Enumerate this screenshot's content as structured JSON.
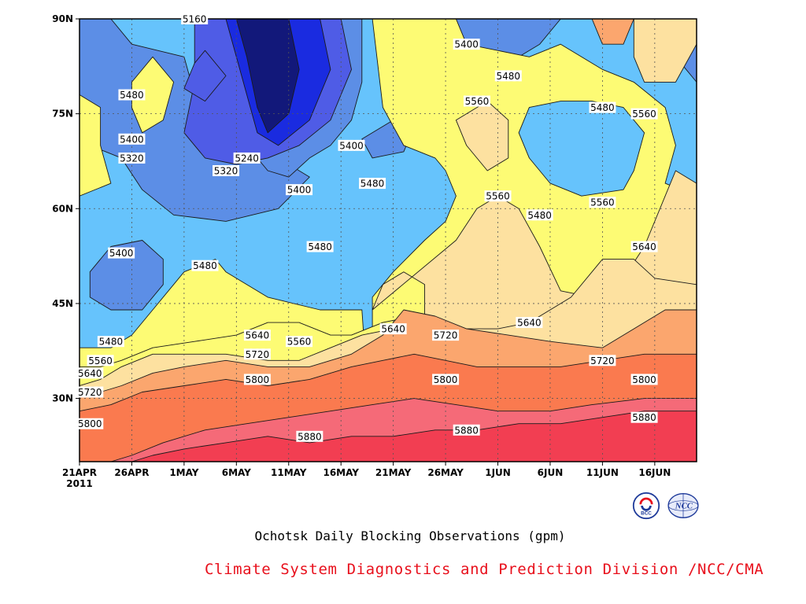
{
  "chart_data": {
    "type": "contour",
    "title": "Ochotsk Daily Blocking Observations (gpm)",
    "x_ticks": [
      "21APR",
      "26APR",
      "1MAY",
      "6MAY",
      "11MAY",
      "16MAY",
      "21MAY",
      "26MAY",
      "1JUN",
      "6JUN",
      "11JUN",
      "16JUN"
    ],
    "x_year": "2011",
    "y_ticks": [
      "90N",
      "75N",
      "60N",
      "45N",
      "30N"
    ],
    "xlim": [
      "2011-04-21",
      "2011-06-19"
    ],
    "ylim": [
      20,
      90
    ],
    "contour_interval": 80,
    "levels": [
      5160,
      5240,
      5320,
      5400,
      5480,
      5560,
      5640,
      5720,
      5800,
      5880
    ],
    "contour_labels": [
      {
        "text": "5160",
        "date": "2011-05-02",
        "lat": 90
      },
      {
        "text": "5400",
        "date": "2011-05-28",
        "lat": 86
      },
      {
        "text": "5480",
        "date": "2011-06-01",
        "lat": 81
      },
      {
        "text": "5480",
        "date": "2011-04-26",
        "lat": 78
      },
      {
        "text": "5560",
        "date": "2011-05-29",
        "lat": 77
      },
      {
        "text": "5480",
        "date": "2011-06-10",
        "lat": 76
      },
      {
        "text": "5560",
        "date": "2011-06-14",
        "lat": 75
      },
      {
        "text": "5400",
        "date": "2011-04-26",
        "lat": 71
      },
      {
        "text": "5320",
        "date": "2011-04-26",
        "lat": 68
      },
      {
        "text": "5240",
        "date": "2011-05-07",
        "lat": 68
      },
      {
        "text": "5400",
        "date": "2011-05-17",
        "lat": 70
      },
      {
        "text": "5320",
        "date": "2011-05-05",
        "lat": 66
      },
      {
        "text": "5480",
        "date": "2011-05-19",
        "lat": 64
      },
      {
        "text": "5400",
        "date": "2011-05-12",
        "lat": 63
      },
      {
        "text": "5560",
        "date": "2011-05-31",
        "lat": 62
      },
      {
        "text": "5560",
        "date": "2011-06-10",
        "lat": 61
      },
      {
        "text": "5480",
        "date": "2011-06-04",
        "lat": 59
      },
      {
        "text": "5640",
        "date": "2011-06-14",
        "lat": 54
      },
      {
        "text": "5400",
        "date": "2011-04-25",
        "lat": 53
      },
      {
        "text": "5480",
        "date": "2011-05-14",
        "lat": 54
      },
      {
        "text": "5480",
        "date": "2011-05-03",
        "lat": 51
      },
      {
        "text": "5640",
        "date": "2011-05-08",
        "lat": 40
      },
      {
        "text": "5640",
        "date": "2011-05-21",
        "lat": 41
      },
      {
        "text": "5720",
        "date": "2011-05-26",
        "lat": 40
      },
      {
        "text": "5640",
        "date": "2011-06-03",
        "lat": 42
      },
      {
        "text": "5480",
        "date": "2011-04-24",
        "lat": 39
      },
      {
        "text": "5560",
        "date": "2011-05-12",
        "lat": 39
      },
      {
        "text": "5720",
        "date": "2011-05-08",
        "lat": 37
      },
      {
        "text": "5720",
        "date": "2011-06-10",
        "lat": 36
      },
      {
        "text": "5560",
        "date": "2011-04-23",
        "lat": 36
      },
      {
        "text": "5640",
        "date": "2011-04-22",
        "lat": 34
      },
      {
        "text": "5800",
        "date": "2011-05-08",
        "lat": 33
      },
      {
        "text": "5800",
        "date": "2011-05-26",
        "lat": 33
      },
      {
        "text": "5800",
        "date": "2011-06-14",
        "lat": 33
      },
      {
        "text": "5720",
        "date": "2011-04-22",
        "lat": 31
      },
      {
        "text": "5880",
        "date": "2011-06-14",
        "lat": 27
      },
      {
        "text": "5800",
        "date": "2011-04-22",
        "lat": 26
      },
      {
        "text": "5880",
        "date": "2011-05-13",
        "lat": 24
      },
      {
        "text": "5880",
        "date": "2011-05-28",
        "lat": 25
      }
    ],
    "colors": {
      "lt5160": "#12187a",
      "5160": "#1a2be0",
      "5240": "#4f5ce6",
      "5320": "#5c8ee6",
      "5400": "#66c3fc",
      "5480": "#fdfb74",
      "5560": "#fde1a0",
      "5640": "#fba66e",
      "5720": "#fa7a4f",
      "5800": "#f56a78",
      "5880": "#f23e52"
    },
    "grid": true
  },
  "caption": "Ochotsk Daily Blocking Observations (gpm)",
  "credit": "Climate System Diagnostics and Prediction Division /NCC/CMA",
  "logos": [
    {
      "name": "BCC",
      "color": "#1e3a9a"
    },
    {
      "name": "NCC",
      "color": "#1e3a9a"
    }
  ]
}
